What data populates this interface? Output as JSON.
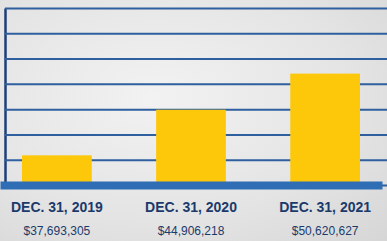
{
  "chart_data": {
    "type": "bar",
    "categories": [
      "DEC. 31, 2019",
      "DEC. 31, 2020",
      "DEC. 31, 2021"
    ],
    "values": [
      37693305,
      44906218,
      50620627
    ],
    "value_labels": [
      "$37,693,305",
      "$44,906,218",
      "$50,620,627"
    ],
    "data_labels": true,
    "color": "#fdc80a",
    "ylim": [
      33000000,
      61000000
    ],
    "yticks": [
      33000000,
      37000000,
      41000000,
      45000000,
      49000000,
      53000000,
      57000000,
      61000000
    ],
    "grid": true,
    "tick_labels": "x"
  }
}
